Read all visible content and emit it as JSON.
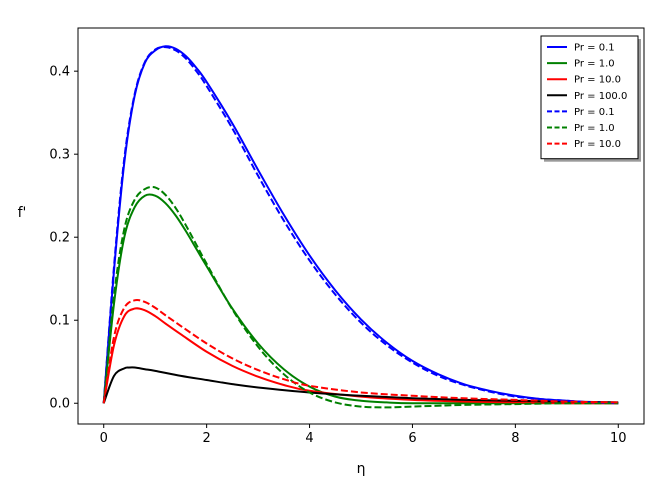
{
  "chart_data": {
    "type": "line",
    "xlabel": "η",
    "ylabel": "f'",
    "xlim": [
      -0.5,
      10.5
    ],
    "ylim": [
      -0.025,
      0.452
    ],
    "xticks": [
      0,
      2,
      4,
      6,
      8,
      10
    ],
    "yticks": [
      0.0,
      0.1,
      0.2,
      0.3,
      0.4
    ],
    "grid": false,
    "legend_position": "top-right",
    "series": [
      {
        "name": "Pr = 0.1",
        "color": "#0000ff",
        "style": "solid",
        "x": [
          0,
          0.2,
          0.4,
          0.6,
          0.8,
          1.0,
          1.2,
          1.4,
          1.6,
          1.8,
          2.0,
          2.5,
          3.0,
          3.5,
          4.0,
          4.5,
          5.0,
          5.5,
          6.0,
          6.5,
          7.0,
          7.5,
          8.0,
          8.5,
          9.0,
          9.5,
          10.0
        ],
        "y": [
          0.0,
          0.16,
          0.29,
          0.37,
          0.41,
          0.425,
          0.43,
          0.427,
          0.418,
          0.404,
          0.387,
          0.337,
          0.281,
          0.227,
          0.178,
          0.136,
          0.101,
          0.073,
          0.051,
          0.035,
          0.023,
          0.015,
          0.009,
          0.005,
          0.003,
          0.001,
          0.0
        ]
      },
      {
        "name": "Pr = 1.0",
        "color": "#008000",
        "style": "solid",
        "x": [
          0,
          0.2,
          0.4,
          0.6,
          0.8,
          1.0,
          1.2,
          1.4,
          1.6,
          1.8,
          2.0,
          2.5,
          3.0,
          3.5,
          4.0,
          4.5,
          5.0,
          5.5,
          6.0,
          7.0,
          8.0,
          9.0,
          10.0
        ],
        "y": [
          0.0,
          0.12,
          0.2,
          0.236,
          0.25,
          0.25,
          0.241,
          0.226,
          0.207,
          0.186,
          0.165,
          0.114,
          0.072,
          0.041,
          0.02,
          0.008,
          0.003,
          0.001,
          0.0,
          0.0,
          0.0,
          0.0,
          0.0
        ]
      },
      {
        "name": "Pr = 10.0",
        "color": "#ff0000",
        "style": "solid",
        "x": [
          0,
          0.2,
          0.4,
          0.6,
          0.8,
          1.0,
          1.2,
          1.5,
          2.0,
          2.5,
          3.0,
          3.5,
          4.0,
          5.0,
          6.0,
          7.0,
          8.0,
          9.0,
          10.0
        ],
        "y": [
          0.0,
          0.07,
          0.105,
          0.114,
          0.112,
          0.105,
          0.096,
          0.083,
          0.062,
          0.045,
          0.032,
          0.022,
          0.015,
          0.008,
          0.004,
          0.002,
          0.001,
          0.0,
          0.0
        ]
      },
      {
        "name": "Pr = 100.0",
        "color": "#000000",
        "style": "solid",
        "x": [
          0,
          0.2,
          0.4,
          0.5,
          0.6,
          0.8,
          1.0,
          1.5,
          2.0,
          2.5,
          3.0,
          4.0,
          5.0,
          6.0,
          7.0,
          8.0,
          9.0,
          10.0
        ],
        "y": [
          0.0,
          0.033,
          0.042,
          0.043,
          0.043,
          0.041,
          0.039,
          0.033,
          0.028,
          0.023,
          0.019,
          0.013,
          0.009,
          0.006,
          0.004,
          0.003,
          0.002,
          0.001
        ]
      },
      {
        "name": "Pr = 0.1",
        "color": "#0000ff",
        "style": "dashed",
        "x": [
          0,
          0.2,
          0.4,
          0.6,
          0.8,
          1.0,
          1.2,
          1.4,
          1.6,
          1.8,
          2.0,
          2.5,
          3.0,
          3.5,
          4.0,
          4.5,
          5.0,
          5.5,
          6.0,
          6.5,
          7.0,
          7.5,
          8.0,
          8.5,
          9.0,
          9.5,
          10.0
        ],
        "y": [
          0.0,
          0.165,
          0.295,
          0.372,
          0.411,
          0.426,
          0.429,
          0.425,
          0.415,
          0.4,
          0.382,
          0.331,
          0.274,
          0.22,
          0.172,
          0.131,
          0.097,
          0.07,
          0.049,
          0.033,
          0.022,
          0.014,
          0.008,
          0.005,
          0.003,
          0.001,
          0.0
        ]
      },
      {
        "name": "Pr = 1.0",
        "color": "#008000",
        "style": "dashed",
        "x": [
          0,
          0.2,
          0.4,
          0.6,
          0.8,
          1.0,
          1.2,
          1.4,
          1.6,
          1.8,
          2.0,
          2.5,
          3.0,
          3.5,
          4.0,
          4.5,
          5.0,
          5.5,
          6.0,
          6.5,
          7.0,
          8.0,
          9.0,
          10.0
        ],
        "y": [
          0.0,
          0.13,
          0.21,
          0.245,
          0.258,
          0.26,
          0.251,
          0.235,
          0.214,
          0.191,
          0.168,
          0.113,
          0.068,
          0.035,
          0.013,
          0.001,
          -0.004,
          -0.005,
          -0.004,
          -0.003,
          -0.002,
          -0.001,
          0.0,
          0.0
        ]
      },
      {
        "name": "Pr = 10.0",
        "color": "#ff0000",
        "style": "dashed",
        "x": [
          0,
          0.2,
          0.4,
          0.6,
          0.8,
          1.0,
          1.2,
          1.5,
          2.0,
          2.5,
          3.0,
          3.5,
          4.0,
          5.0,
          6.0,
          7.0,
          8.0,
          9.0,
          10.0
        ],
        "y": [
          0.0,
          0.08,
          0.115,
          0.124,
          0.122,
          0.115,
          0.106,
          0.093,
          0.072,
          0.054,
          0.04,
          0.029,
          0.021,
          0.013,
          0.009,
          0.006,
          0.004,
          0.002,
          0.001
        ]
      }
    ]
  }
}
